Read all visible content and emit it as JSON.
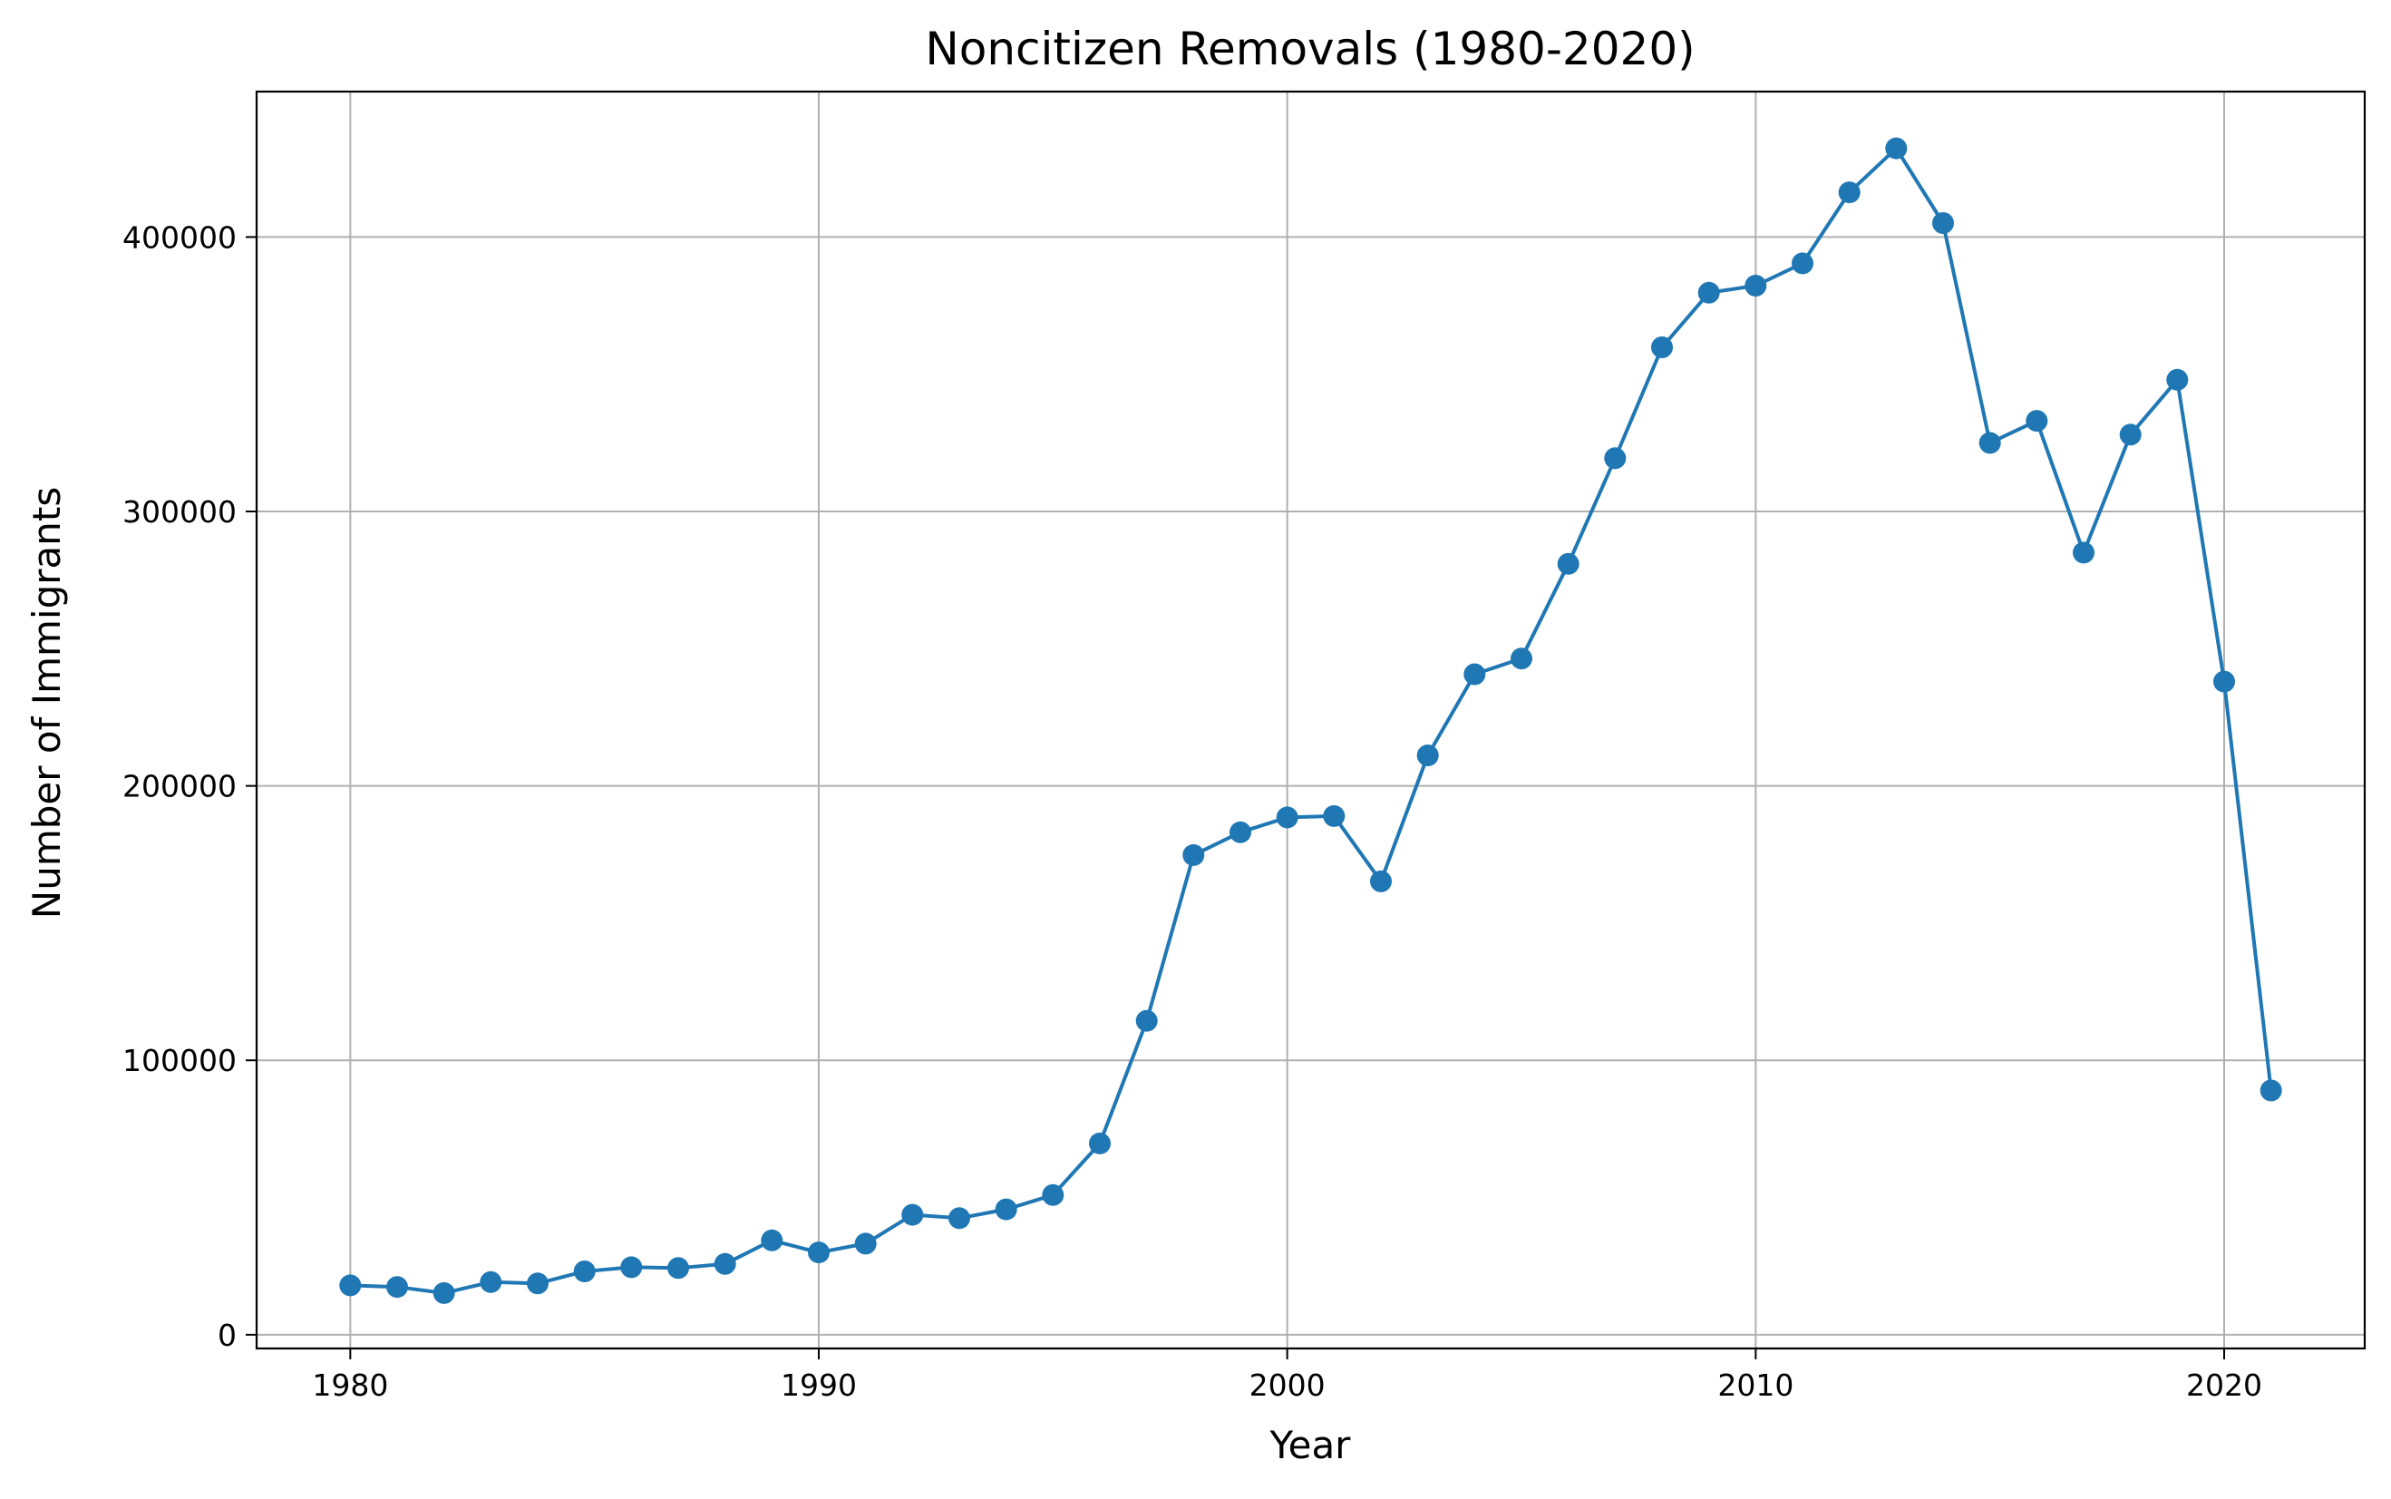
{
  "chart_data": {
    "type": "line",
    "title": "Noncitizen Removals (1980-2020)",
    "xlabel": "Year",
    "ylabel": "Number of Immigrants",
    "xlim": [
      1978,
      2023
    ],
    "ylim": [
      -5000,
      453000
    ],
    "xticks": [
      1980,
      1990,
      2000,
      2010,
      2020
    ],
    "yticks": [
      0,
      100000,
      200000,
      300000,
      400000
    ],
    "grid": true,
    "legend": "none",
    "series": [
      {
        "color": "#1f77b4",
        "marker": "circle",
        "x": [
          1980,
          1981,
          1982,
          1983,
          1984,
          1985,
          1986,
          1987,
          1988,
          1989,
          1990,
          1991,
          1992,
          1993,
          1994,
          1995,
          1996,
          1997,
          1998,
          1999,
          2000,
          2001,
          2002,
          2003,
          2004,
          2005,
          2006,
          2007,
          2008,
          2009,
          2010,
          2011,
          2012,
          2013,
          2014,
          2015,
          2016,
          2017,
          2018,
          2019,
          2020,
          2021
        ],
        "values": [
          18000,
          17400,
          15200,
          19200,
          18700,
          23100,
          24600,
          24300,
          25800,
          34400,
          30000,
          33200,
          43700,
          42500,
          45700,
          50900,
          69700,
          114400,
          174800,
          183100,
          188500,
          189000,
          165200,
          211100,
          240700,
          246400,
          280900,
          319400,
          359800,
          379700,
          382300,
          390400,
          416300,
          432300,
          405100,
          325000,
          333000,
          285000,
          328000,
          348000,
          238000,
          89000
        ]
      }
    ]
  }
}
